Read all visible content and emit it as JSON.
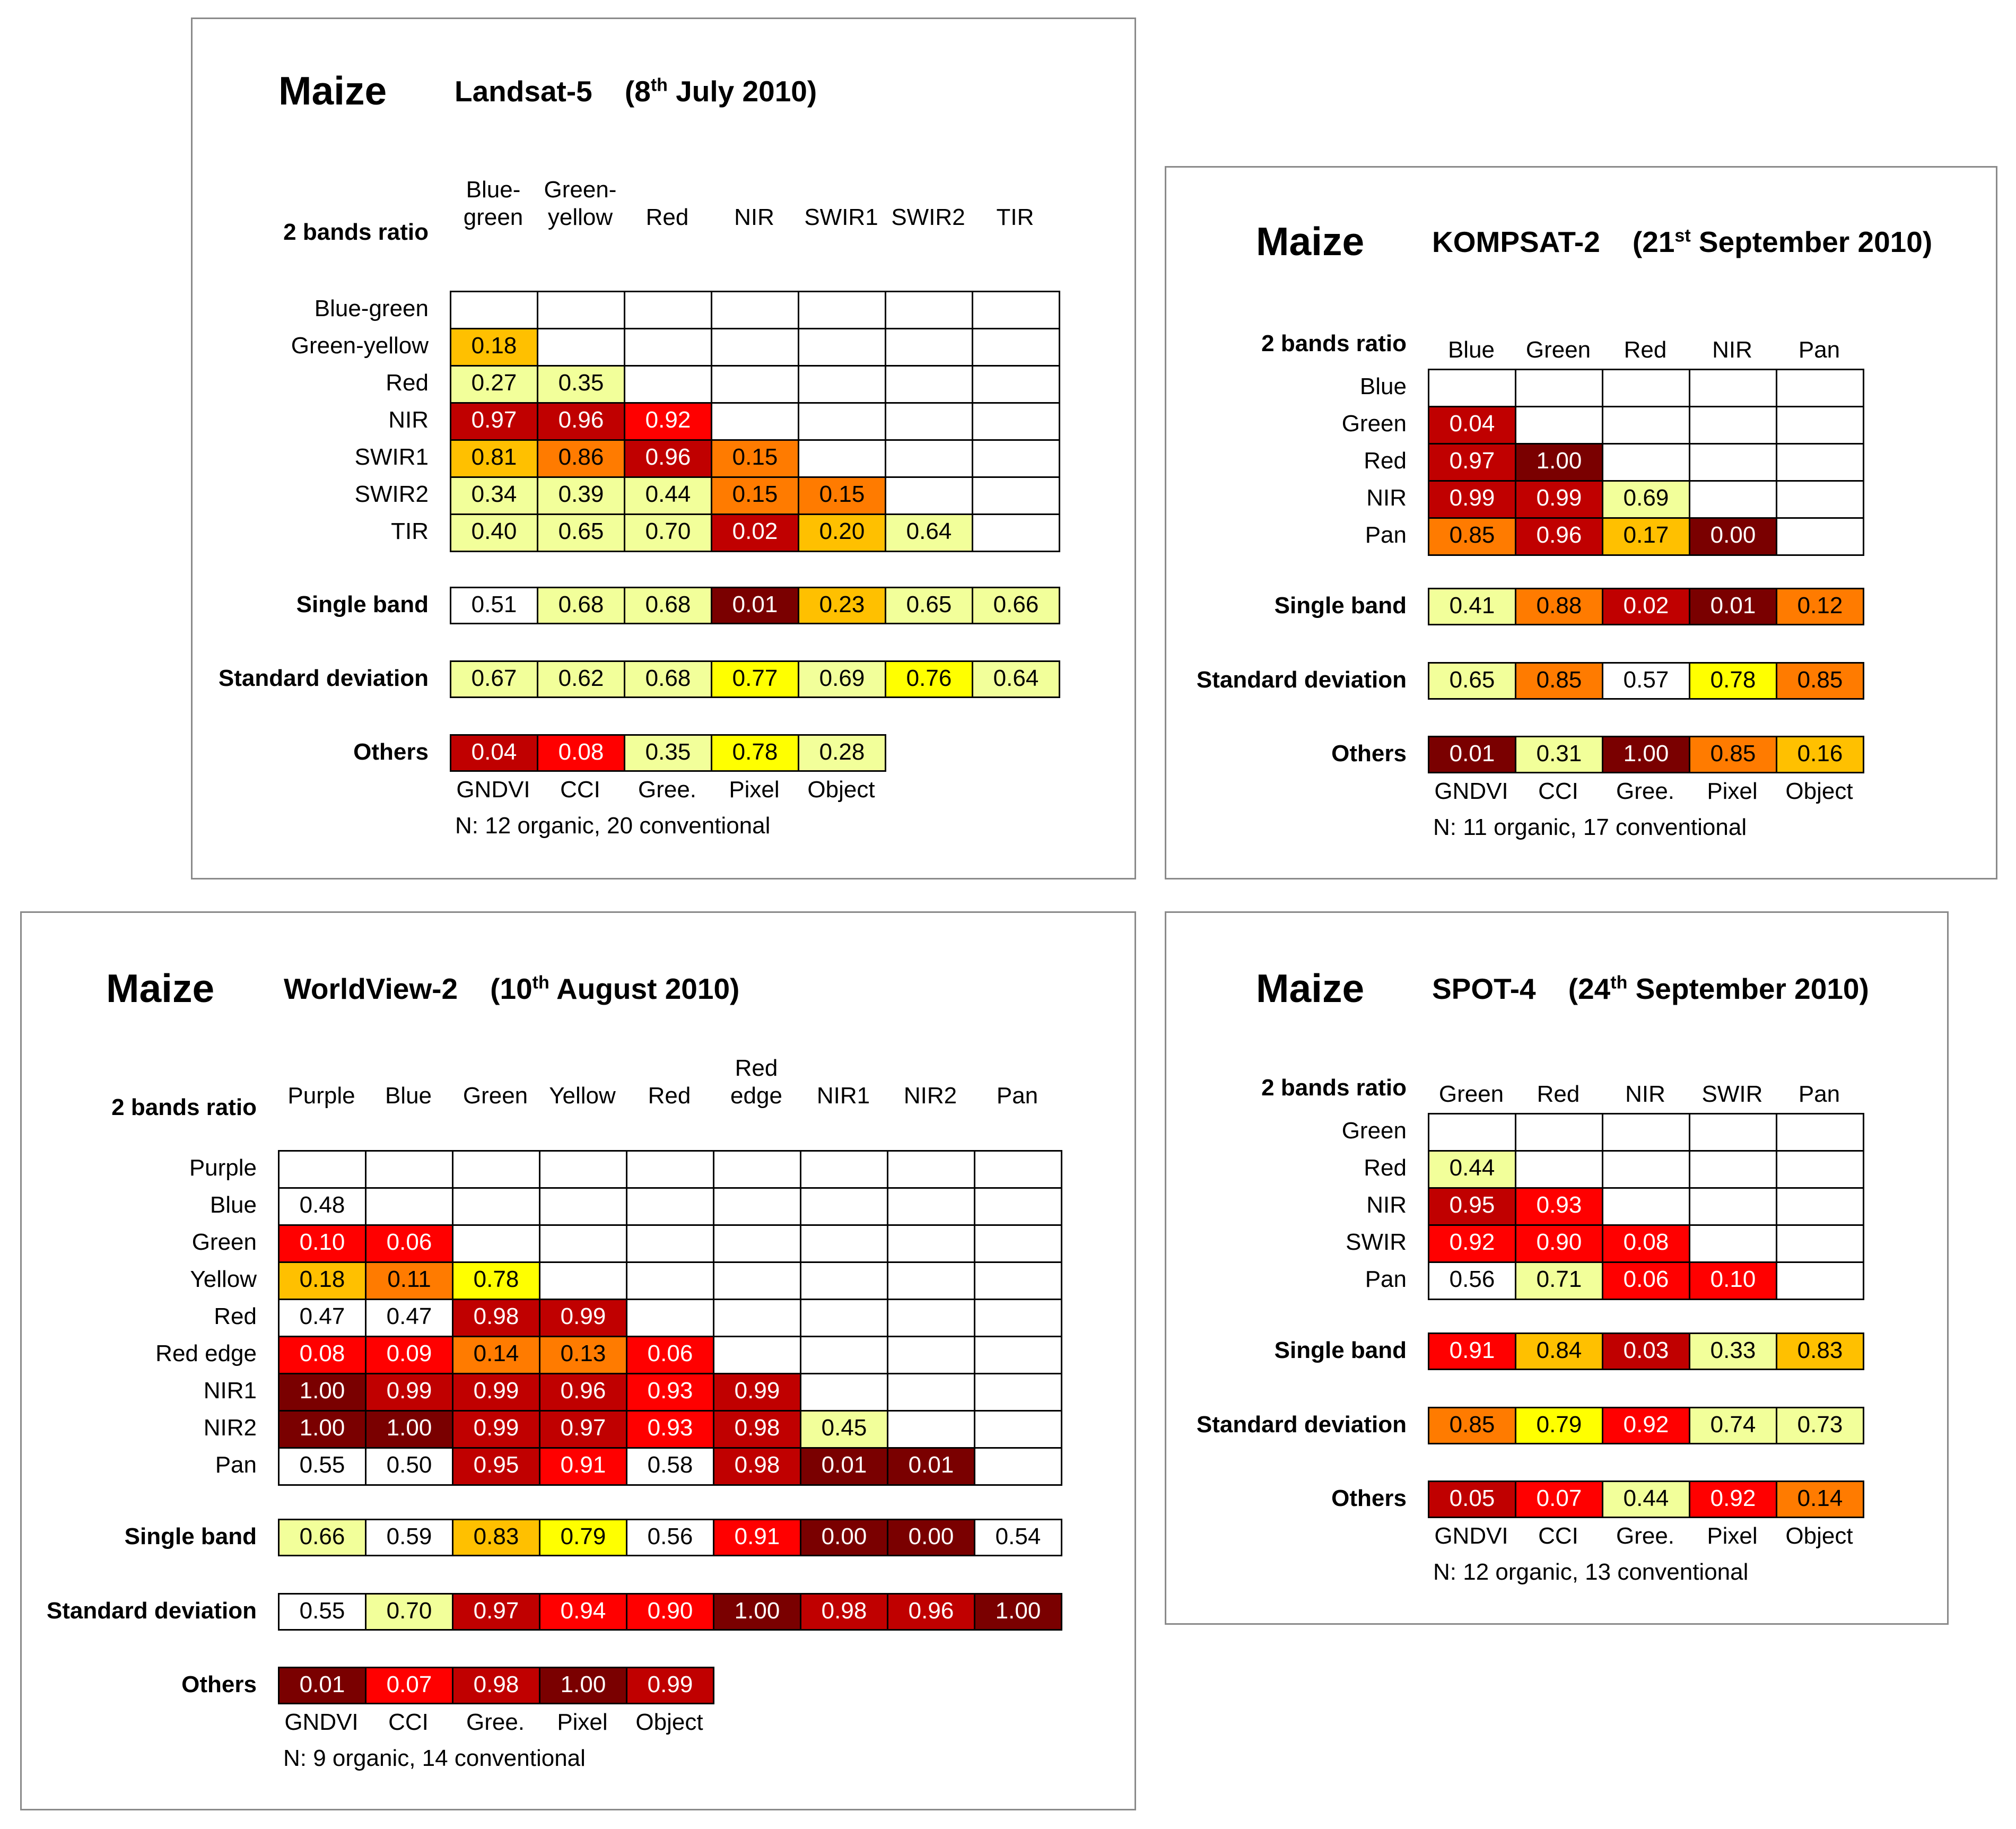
{
  "colors": {
    "white": "#ffffff",
    "pale_yellow": "#f2ff9a",
    "yellow": "#ffff00",
    "light_orange": "#ffc000",
    "orange": "#ff7b00",
    "red": "#ff0000",
    "dark_red": "#c00000",
    "darkest_red": "#7a0000"
  },
  "chart_data": [
    {
      "type": "table",
      "crop": "Maize",
      "sensor": "Landsat-5",
      "date_pre": "(8",
      "date_sup": "th",
      "date_post": " July 2010)",
      "ratio_label": "2 bands ratio",
      "bands": [
        "Blue-green",
        "Green-yellow",
        "Red",
        "NIR",
        "SWIR1",
        "SWIR2",
        "TIR"
      ],
      "col_labels": [
        "Blue-\ngreen",
        "Green-\nyellow",
        "Red",
        "NIR",
        "SWIR1",
        "SWIR2",
        "TIR"
      ],
      "ratio_matrix": [
        [],
        [
          "0.18"
        ],
        [
          "0.27",
          "0.35"
        ],
        [
          "0.97",
          "0.96",
          "0.92"
        ],
        [
          "0.81",
          "0.86",
          "0.96",
          "0.15"
        ],
        [
          "0.34",
          "0.39",
          "0.44",
          "0.15",
          "0.15"
        ],
        [
          "0.40",
          "0.65",
          "0.70",
          "0.02",
          "0.20",
          "0.64"
        ]
      ],
      "single_band_label": "Single band",
      "single_band": [
        "0.51",
        "0.68",
        "0.68",
        "0.01",
        "0.23",
        "0.65",
        "0.66"
      ],
      "std_label": "Standard deviation",
      "std_dev": [
        "0.67",
        "0.62",
        "0.68",
        "0.77",
        "0.69",
        "0.76",
        "0.64"
      ],
      "others_label": "Others",
      "others_names": [
        "GNDVI",
        "CCI",
        "Gree.",
        "Pixel",
        "Object"
      ],
      "others": [
        "0.04",
        "0.08",
        "0.35",
        "0.78",
        "0.28"
      ],
      "note": "N: 12 organic, 20 conventional"
    },
    {
      "type": "table",
      "crop": "Maize",
      "sensor": "KOMPSAT-2",
      "date_pre": "(21",
      "date_sup": "st",
      "date_post": " September 2010)",
      "ratio_label": "2 bands ratio",
      "bands": [
        "Blue",
        "Green",
        "Red",
        "NIR",
        "Pan"
      ],
      "col_labels": [
        "Blue",
        "Green",
        "Red",
        "NIR",
        "Pan"
      ],
      "ratio_matrix": [
        [],
        [
          "0.04"
        ],
        [
          "0.97",
          "1.00"
        ],
        [
          "0.99",
          "0.99",
          "0.69"
        ],
        [
          "0.85",
          "0.96",
          "0.17",
          "0.00"
        ]
      ],
      "single_band_label": "Single band",
      "single_band": [
        "0.41",
        "0.88",
        "0.02",
        "0.01",
        "0.12"
      ],
      "std_label": "Standard deviation",
      "std_dev": [
        "0.65",
        "0.85",
        "0.57",
        "0.78",
        "0.85"
      ],
      "others_label": "Others",
      "others_names": [
        "GNDVI",
        "CCI",
        "Gree.",
        "Pixel",
        "Object"
      ],
      "others": [
        "0.01",
        "0.31",
        "1.00",
        "0.85",
        "0.16"
      ],
      "note": "N: 11 organic, 17 conventional"
    },
    {
      "type": "table",
      "crop": "Maize",
      "sensor": "WorldView-2",
      "date_pre": "(10",
      "date_sup": "th",
      "date_post": " August 2010)",
      "ratio_label": "2 bands ratio",
      "bands": [
        "Purple",
        "Blue",
        "Green",
        "Yellow",
        "Red",
        "Red edge",
        "NIR1",
        "NIR2",
        "Pan"
      ],
      "col_labels": [
        "Purple",
        "Blue",
        "Green",
        "Yellow",
        "Red",
        "Red\nedge",
        "NIR1",
        "NIR2",
        "Pan"
      ],
      "ratio_matrix": [
        [],
        [
          "0.48"
        ],
        [
          "0.10",
          "0.06"
        ],
        [
          "0.18",
          "0.11",
          "0.78"
        ],
        [
          "0.47",
          "0.47",
          "0.98",
          "0.99"
        ],
        [
          "0.08",
          "0.09",
          "0.14",
          "0.13",
          "0.06"
        ],
        [
          "1.00",
          "0.99",
          "0.99",
          "0.96",
          "0.93",
          "0.99"
        ],
        [
          "1.00",
          "1.00",
          "0.99",
          "0.97",
          "0.93",
          "0.98",
          "0.45"
        ],
        [
          "0.55",
          "0.50",
          "0.95",
          "0.91",
          "0.58",
          "0.98",
          "0.01",
          "0.01"
        ]
      ],
      "single_band_label": "Single band",
      "single_band": [
        "0.66",
        "0.59",
        "0.83",
        "0.79",
        "0.56",
        "0.91",
        "0.00",
        "0.00",
        "0.54"
      ],
      "std_label": "Standard deviation",
      "std_dev": [
        "0.55",
        "0.70",
        "0.97",
        "0.94",
        "0.90",
        "1.00",
        "0.98",
        "0.96",
        "1.00"
      ],
      "others_label": "Others",
      "others_names": [
        "GNDVI",
        "CCI",
        "Gree.",
        "Pixel",
        "Object"
      ],
      "others": [
        "0.01",
        "0.07",
        "0.98",
        "1.00",
        "0.99"
      ],
      "note": "N: 9 organic, 14 conventional"
    },
    {
      "type": "table",
      "crop": "Maize",
      "sensor": "SPOT-4",
      "date_pre": "(24",
      "date_sup": "th",
      "date_post": " September 2010)",
      "ratio_label": "2 bands ratio",
      "bands": [
        "Green",
        "Red",
        "NIR",
        "SWIR",
        "Pan"
      ],
      "col_labels": [
        "Green",
        "Red",
        "NIR",
        "SWIR",
        "Pan"
      ],
      "ratio_matrix": [
        [],
        [
          "0.44"
        ],
        [
          "0.95",
          "0.93"
        ],
        [
          "0.92",
          "0.90",
          "0.08"
        ],
        [
          "0.56",
          "0.71",
          "0.06",
          "0.10"
        ]
      ],
      "single_band_label": "Single band",
      "single_band": [
        "0.91",
        "0.84",
        "0.03",
        "0.33",
        "0.83"
      ],
      "std_label": "Standard deviation",
      "std_dev": [
        "0.85",
        "0.79",
        "0.92",
        "0.74",
        "0.73"
      ],
      "others_label": "Others",
      "others_names": [
        "GNDVI",
        "CCI",
        "Gree.",
        "Pixel",
        "Object"
      ],
      "others": [
        "0.05",
        "0.07",
        "0.44",
        "0.92",
        "0.14"
      ],
      "note": "N: 12 organic, 13 conventional"
    }
  ]
}
